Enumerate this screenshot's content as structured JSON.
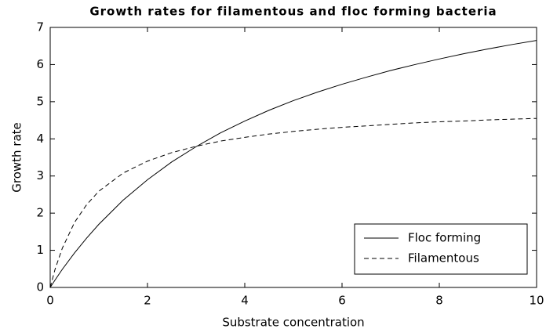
{
  "chart_data": {
    "type": "line",
    "title": "Growth rates for filamentous and floc forming bacteria",
    "xlabel": "Substrate concentration",
    "ylabel": "Growth rate",
    "x": [
      0,
      0.1,
      0.25,
      0.5,
      0.75,
      1,
      1.5,
      2,
      2.5,
      3,
      3.5,
      4,
      4.5,
      5,
      5.5,
      6,
      6.5,
      7,
      7.5,
      8,
      8.5,
      9,
      9.5,
      10
    ],
    "series": [
      {
        "name": "Floc forming",
        "color": "#000000",
        "dash": "solid",
        "values": [
          0,
          0.2,
          0.49,
          0.93,
          1.33,
          1.7,
          2.35,
          2.9,
          3.38,
          3.79,
          4.16,
          4.48,
          4.77,
          5.03,
          5.26,
          5.47,
          5.66,
          5.84,
          6.0,
          6.15,
          6.29,
          6.42,
          6.54,
          6.65
        ]
      },
      {
        "name": "Filamentous",
        "color": "#000000",
        "dash": "dashed",
        "values": [
          0,
          0.49,
          1.06,
          1.75,
          2.23,
          2.59,
          3.08,
          3.4,
          3.63,
          3.8,
          3.94,
          4.04,
          4.13,
          4.2,
          4.26,
          4.31,
          4.35,
          4.39,
          4.43,
          4.46,
          4.48,
          4.51,
          4.53,
          4.55
        ]
      }
    ],
    "xlim": [
      0,
      10
    ],
    "xticks": [
      0,
      2,
      4,
      6,
      8,
      10
    ],
    "ylim": [
      0,
      7
    ],
    "yticks": [
      0,
      1,
      2,
      3,
      4,
      5,
      6,
      7
    ],
    "grid": false,
    "legend": "lower right"
  }
}
